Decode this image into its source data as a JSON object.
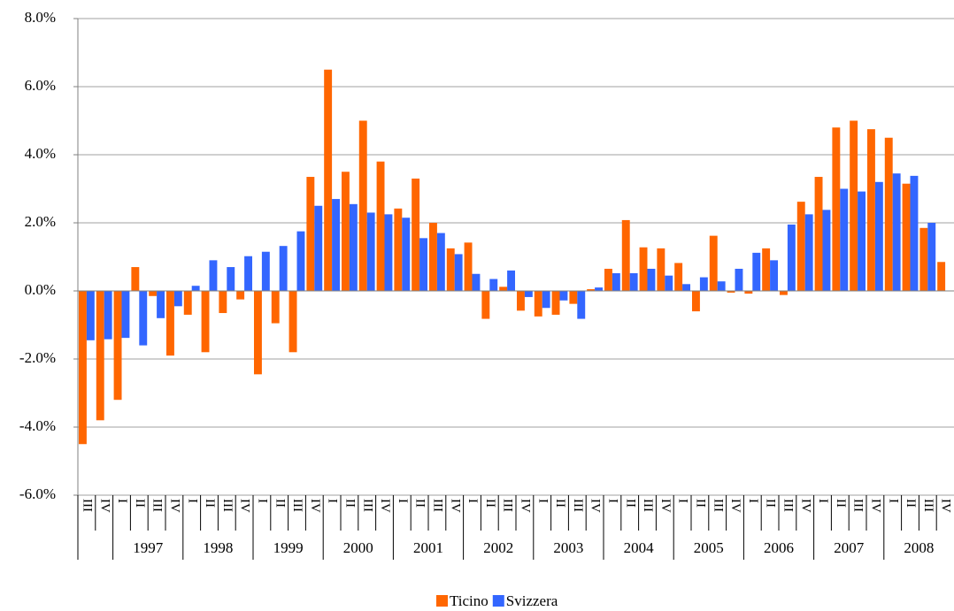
{
  "chart_data": {
    "type": "bar",
    "groups": [
      {
        "year": null,
        "quarters": [
          "III",
          "IV"
        ]
      },
      {
        "year": "1997",
        "quarters": [
          "I",
          "II",
          "III",
          "IV"
        ]
      },
      {
        "year": "1998",
        "quarters": [
          "I",
          "II",
          "III",
          "IV"
        ]
      },
      {
        "year": "1999",
        "quarters": [
          "I",
          "II",
          "III",
          "IV"
        ]
      },
      {
        "year": "2000",
        "quarters": [
          "I",
          "II",
          "III",
          "IV"
        ]
      },
      {
        "year": "2001",
        "quarters": [
          "I",
          "II",
          "III",
          "IV"
        ]
      },
      {
        "year": "2002",
        "quarters": [
          "I",
          "II",
          "III",
          "IV"
        ]
      },
      {
        "year": "2003",
        "quarters": [
          "I",
          "II",
          "III",
          "IV"
        ]
      },
      {
        "year": "2004",
        "quarters": [
          "I",
          "II",
          "III",
          "IV"
        ]
      },
      {
        "year": "2005",
        "quarters": [
          "I",
          "II",
          "III",
          "IV"
        ]
      },
      {
        "year": "2006",
        "quarters": [
          "I",
          "II",
          "III",
          "IV"
        ]
      },
      {
        "year": "2007",
        "quarters": [
          "I",
          "II",
          "III",
          "IV"
        ]
      },
      {
        "year": "2008",
        "quarters": [
          "I",
          "II",
          "III",
          "IV"
        ]
      }
    ],
    "series": [
      {
        "name": "Ticino",
        "color": "#ff6600",
        "values": [
          -4.5,
          -3.8,
          -3.2,
          0.7,
          -0.15,
          -1.9,
          -0.7,
          -1.8,
          -0.65,
          -0.25,
          -2.45,
          -0.95,
          -1.8,
          3.35,
          6.5,
          3.5,
          5.0,
          3.8,
          2.42,
          3.3,
          2.0,
          1.25,
          1.42,
          -0.82,
          0.12,
          -0.58,
          -0.75,
          -0.7,
          -0.38,
          0.05,
          0.65,
          2.08,
          1.28,
          1.25,
          0.82,
          -0.6,
          1.62,
          -0.05,
          -0.08,
          1.25,
          -0.12,
          2.62,
          3.35,
          4.8,
          5.0,
          4.75,
          4.5,
          3.15,
          1.85,
          0.85
        ]
      },
      {
        "name": "Svizzera",
        "color": "#3366ff",
        "values": [
          -1.45,
          -1.42,
          -1.38,
          -1.6,
          -0.8,
          -0.45,
          0.15,
          0.9,
          0.7,
          1.02,
          1.15,
          1.32,
          1.75,
          2.5,
          2.7,
          2.55,
          2.3,
          2.25,
          2.15,
          1.55,
          1.7,
          1.08,
          0.5,
          0.35,
          0.6,
          -0.18,
          -0.5,
          -0.28,
          -0.82,
          0.1,
          0.52,
          0.52,
          0.65,
          0.45,
          0.2,
          0.4,
          0.28,
          0.65,
          1.12,
          0.9,
          1.95,
          2.25,
          2.38,
          3.0,
          2.92,
          3.2,
          3.45,
          3.38,
          2.0,
          null
        ]
      }
    ],
    "ylim": [
      -6,
      8
    ],
    "yticks": [
      {
        "value": -6,
        "label": "-6.0%"
      },
      {
        "value": -4,
        "label": "-4.0%"
      },
      {
        "value": -2,
        "label": "-2.0%"
      },
      {
        "value": 0,
        "label": "0.0%"
      },
      {
        "value": 2,
        "label": "2.0%"
      },
      {
        "value": 4,
        "label": "4.0%"
      },
      {
        "value": 6,
        "label": "6.0%"
      },
      {
        "value": 8,
        "label": "8.0%"
      }
    ],
    "grid": true,
    "legend": "bottom"
  }
}
